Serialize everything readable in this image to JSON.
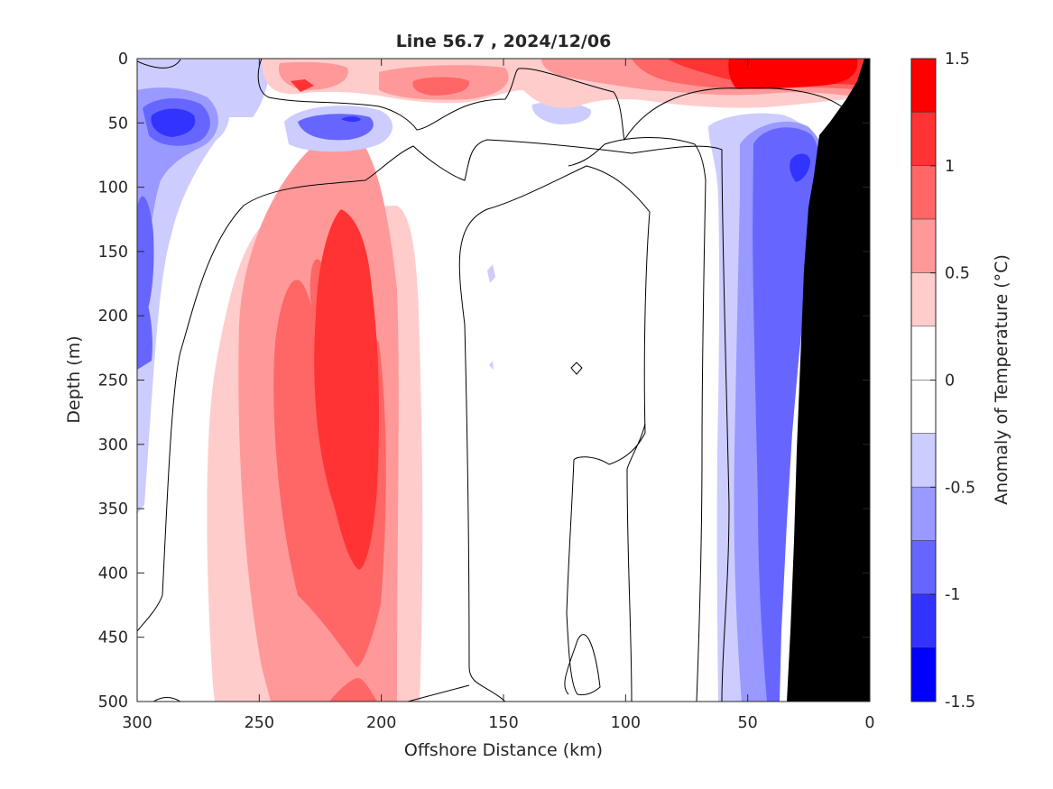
{
  "chart_data": {
    "type": "heatmap",
    "title": "Line 56.7 , 2024/12/06",
    "xlabel": "Offshore Distance (km)",
    "ylabel": "Depth (m)",
    "colorbar_label": "Anomaly of Temperature (°C)",
    "xlim": [
      300,
      0
    ],
    "ylim": [
      0,
      500
    ],
    "x_reversed": true,
    "y_reversed": true,
    "xticks": [
      300,
      250,
      200,
      150,
      100,
      50,
      0
    ],
    "yticks": [
      0,
      50,
      100,
      150,
      200,
      250,
      300,
      350,
      400,
      450,
      500
    ],
    "clim": [
      -1.5,
      1.5
    ],
    "colorbar_ticks": [
      1.5,
      1,
      0.5,
      0,
      -0.5,
      -1,
      -1.5
    ],
    "colorbar_tick_labels": [
      "1.5",
      "1",
      "0.5",
      "0",
      "-0.5",
      "-1",
      "-1.5"
    ],
    "levels": [
      {
        "range": [
          1.25,
          1.5
        ],
        "color": "#ff0000"
      },
      {
        "range": [
          1.0,
          1.25
        ],
        "color": "#ff3333"
      },
      {
        "range": [
          0.75,
          1.0
        ],
        "color": "#ff6666"
      },
      {
        "range": [
          0.5,
          0.75
        ],
        "color": "#ff9999"
      },
      {
        "range": [
          0.25,
          0.5
        ],
        "color": "#ffcccc"
      },
      {
        "range": [
          0.0,
          0.25
        ],
        "color": "#ffffff"
      },
      {
        "range": [
          -0.25,
          0.0
        ],
        "color": "#ffffff"
      },
      {
        "range": [
          -0.5,
          -0.25
        ],
        "color": "#ccccff"
      },
      {
        "range": [
          -0.75,
          -0.5
        ],
        "color": "#9999ff"
      },
      {
        "range": [
          -1.0,
          -0.75
        ],
        "color": "#6666ff"
      },
      {
        "range": [
          -1.25,
          -1.0
        ],
        "color": "#3333ff"
      },
      {
        "range": [
          -1.5,
          -1.25
        ],
        "color": "#0000ff"
      }
    ],
    "features": [
      {
        "name": "warm-core",
        "center_km": 213,
        "center_depth_m": 300,
        "peak_anomaly": 1.1
      },
      {
        "name": "nearshore-cold-band",
        "center_km": 40,
        "center_depth_m": 250,
        "peak_anomaly": -1.1
      },
      {
        "name": "offshore-cold-patch",
        "center_km": 282,
        "center_depth_m": 48,
        "peak_anomaly": -1.3
      },
      {
        "name": "surface-warm-nearshore",
        "center_km": 30,
        "center_depth_m": 10,
        "peak_anomaly": 1.3
      }
    ],
    "bathymetry_color": "#000000",
    "bathymetry_km_depth": [
      [
        0,
        35
      ],
      [
        5,
        70
      ],
      [
        12,
        100
      ],
      [
        20,
        150
      ],
      [
        25,
        195
      ],
      [
        29,
        300
      ],
      [
        31,
        400
      ],
      [
        33,
        500
      ],
      [
        0,
        500
      ]
    ]
  }
}
